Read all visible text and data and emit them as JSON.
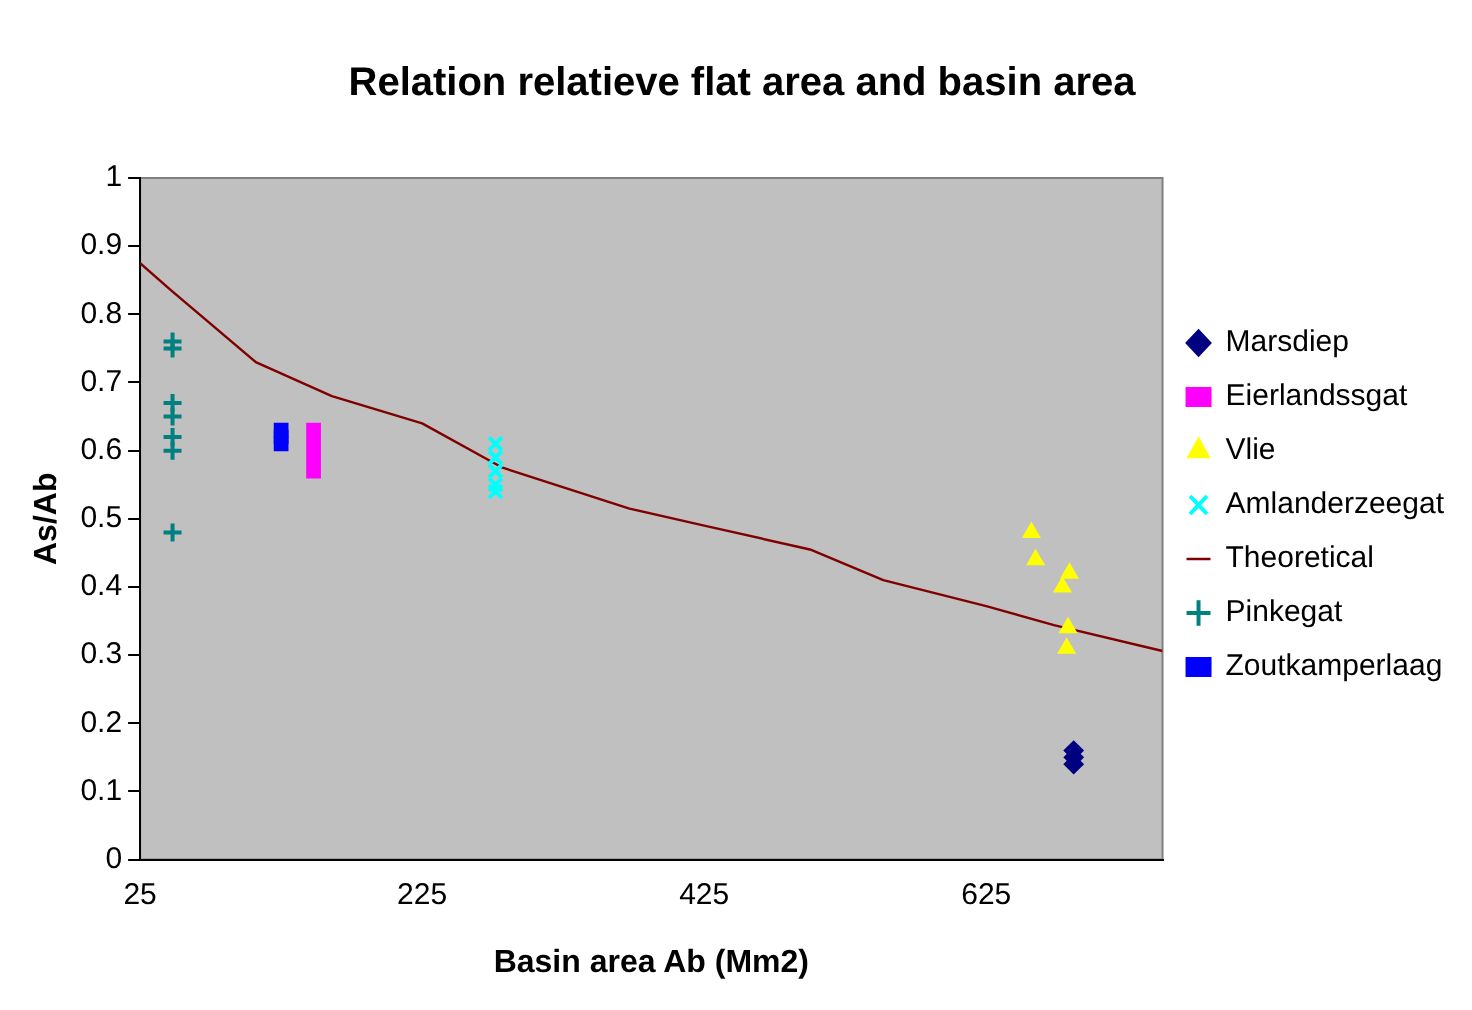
{
  "chart_data": {
    "type": "scatter",
    "title": "Relation relatieve flat area and basin area",
    "xlabel": "Basin area Ab (Mm2)",
    "ylabel": "As/Ab",
    "xlim": [
      25,
      750
    ],
    "xticks": [
      25,
      225,
      425,
      625
    ],
    "ylim": [
      0,
      1
    ],
    "yticks": [
      0,
      0.1,
      0.2,
      0.3,
      0.4,
      0.5,
      0.6,
      0.7,
      0.8,
      0.9,
      1
    ],
    "grid": false,
    "legend": "right",
    "series": [
      {
        "name": "Marsdiep",
        "color": "#000080",
        "marker": "diamond",
        "x": [
          687,
          687,
          687
        ],
        "values": [
          0.16,
          0.15,
          0.14
        ]
      },
      {
        "name": "Eierlandssgat",
        "color": "#ff00ff",
        "marker": "square",
        "x": [
          148,
          148,
          148,
          148
        ],
        "values": [
          0.63,
          0.61,
          0.59,
          0.57
        ]
      },
      {
        "name": "Vlie",
        "color": "#ffff00",
        "marker": "triangle",
        "x": [
          657,
          660,
          684,
          679,
          683,
          682
        ],
        "values": [
          0.48,
          0.44,
          0.42,
          0.4,
          0.34,
          0.31
        ]
      },
      {
        "name": "Amlanderzeegat",
        "color": "#00ffff",
        "marker": "x",
        "x": [
          277,
          277,
          277,
          277,
          277
        ],
        "values": [
          0.61,
          0.59,
          0.57,
          0.55,
          0.54
        ]
      },
      {
        "name": "Theoretical",
        "color": "#800000",
        "type": "line",
        "marker": "none",
        "x": [
          25,
          47,
          107,
          161,
          225,
          282,
          372,
          425,
          500,
          552,
          625,
          673,
          750
        ],
        "values": [
          0.875,
          0.835,
          0.73,
          0.68,
          0.64,
          0.575,
          0.515,
          0.49,
          0.455,
          0.41,
          0.372,
          0.344,
          0.306
        ]
      },
      {
        "name": "Pinkegat",
        "color": "#008080",
        "marker": "cross",
        "x": [
          48,
          48,
          48,
          48,
          48,
          48,
          48
        ],
        "values": [
          0.76,
          0.75,
          0.67,
          0.65,
          0.62,
          0.6,
          0.48
        ]
      },
      {
        "name": "Zoutkamperlaag",
        "color": "#0000ff",
        "marker": "square",
        "x": [
          125,
          125,
          125
        ],
        "values": [
          0.63,
          0.62,
          0.61
        ]
      }
    ]
  }
}
